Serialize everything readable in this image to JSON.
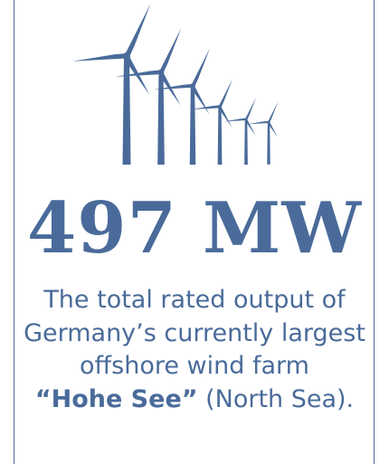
{
  "headline": "497 MW",
  "description": {
    "lines": [
      "The total rated output of",
      "Germany’s currently largest",
      "offshore wind farm"
    ],
    "highlight": "“Hohe See”",
    "suffix": "(North Sea)."
  }
}
